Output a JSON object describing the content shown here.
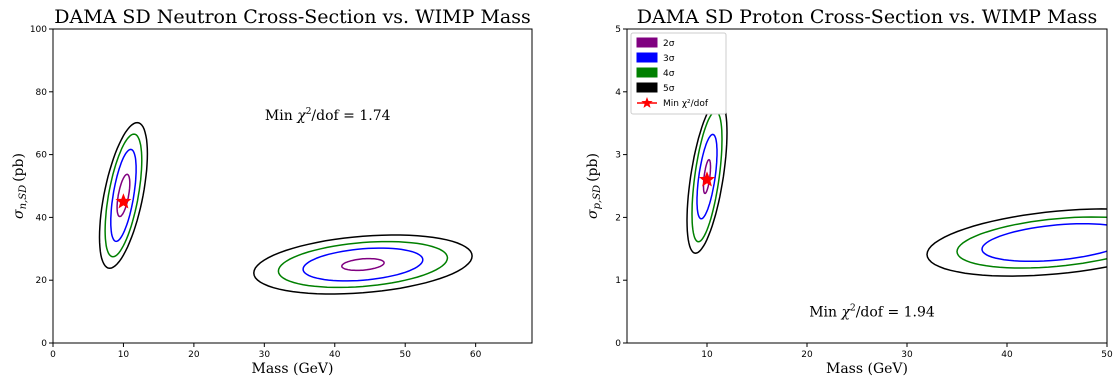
{
  "colors": {
    "2sigma": "#800080",
    "3sigma": "#0000ff",
    "4sigma": "#008000",
    "5sigma": "#000000",
    "marker": "#ff0000"
  },
  "chart_data": [
    {
      "type": "contour",
      "title": "DAMA SD Neutron Cross-Section vs. WIMP Mass",
      "xlabel": "Mass (GeV)",
      "ylabel_main": "σ",
      "ylabel_sub": "n,SD",
      "ylabel_unit": "(pb)",
      "xlim": [
        0,
        68
      ],
      "ylim": [
        0,
        100
      ],
      "xticks": [
        0,
        10,
        20,
        30,
        40,
        50,
        60
      ],
      "yticks": [
        0,
        20,
        40,
        60,
        80,
        100
      ],
      "annotation": {
        "prefix": "Min ",
        "chi": "χ",
        "sup": "2",
        "suffix": "/dof = 1.74",
        "x": 39,
        "y": 71
      },
      "min_point": {
        "x": 10,
        "y": 45
      },
      "regions": [
        {
          "cx": 10,
          "cy": 47,
          "levels": {
            "2sigma": [
              0.9,
              5.5,
              0.7
            ],
            "3sigma": [
              1.8,
              12,
              0.7
            ],
            "4sigma": [
              2.6,
              16,
              0.7
            ],
            "5sigma": [
              3.4,
              19,
              0.7
            ]
          }
        },
        {
          "cx": 44,
          "cy": 25,
          "levels": {
            "2sigma": [
              3,
              1.8,
              0.3
            ],
            "3sigma": [
              8.5,
              5,
              0.3
            ],
            "4sigma": [
              12,
              7,
              0.3
            ],
            "5sigma": [
              15.5,
              9,
              0.3
            ]
          }
        }
      ]
    },
    {
      "type": "contour",
      "title": "DAMA SD Proton Cross-Section vs. WIMP Mass",
      "xlabel": "Mass (GeV)",
      "ylabel_main": "σ",
      "ylabel_sub": "p,SD",
      "ylabel_unit": "(pb)",
      "xlim": [
        2,
        50
      ],
      "ylim": [
        0,
        5
      ],
      "xticks": [
        10,
        20,
        30,
        40,
        50
      ],
      "yticks": [
        0,
        1,
        2,
        3,
        4,
        5
      ],
      "annotation": {
        "prefix": "Min ",
        "chi": "χ",
        "sup": "2",
        "suffix": "/dof = 1.94",
        "x": 26.5,
        "y": 0.42
      },
      "min_point": {
        "x": 10,
        "y": 2.6
      },
      "legend": {
        "position": "upper-left",
        "entries": [
          {
            "key": "2sigma",
            "label": "2σ"
          },
          {
            "key": "3sigma",
            "label": "3σ"
          },
          {
            "key": "4sigma",
            "label": "4σ"
          },
          {
            "key": "5sigma",
            "label": "5σ"
          },
          {
            "key": "marker",
            "label": "Min χ²/dof"
          }
        ]
      },
      "regions": [
        {
          "cx": 10,
          "cy": 2.65,
          "levels": {
            "2sigma": [
              0.35,
              0.22,
              0.7
            ],
            "3sigma": [
              1.0,
              0.55,
              0.7
            ],
            "4sigma": [
              1.5,
              0.85,
              0.7
            ],
            "5sigma": [
              2.0,
              1.0,
              0.7
            ]
          }
        },
        {
          "cx": 45,
          "cy": 1.6,
          "levels": {
            "3sigma": [
              7.5,
              0.28,
              0.38
            ],
            "4sigma": [
              10,
              0.38,
              0.38
            ],
            "5sigma": [
              13,
              0.5,
              0.38
            ]
          }
        }
      ]
    }
  ]
}
